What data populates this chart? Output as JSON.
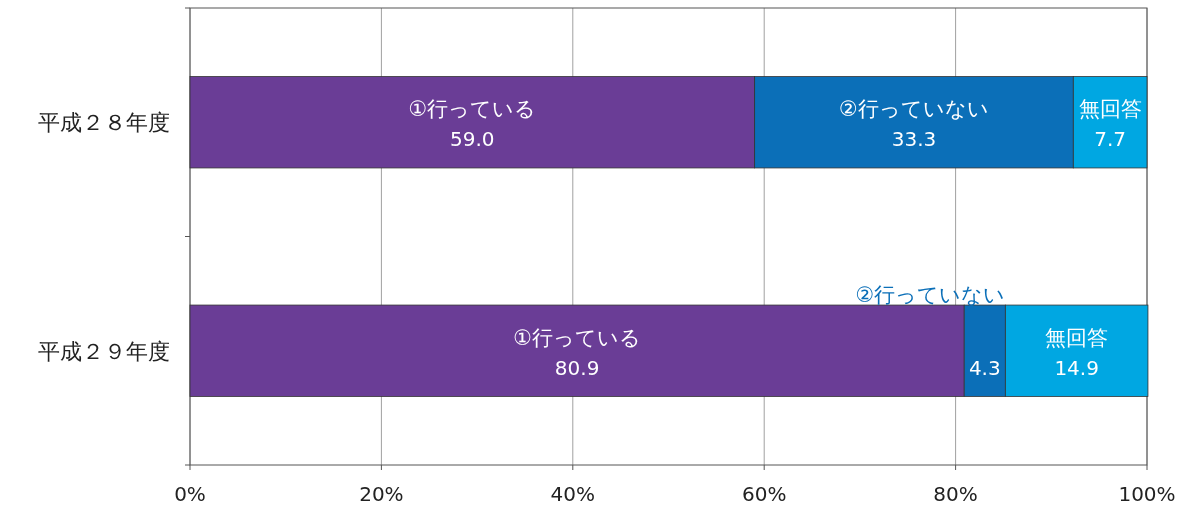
{
  "chart_data": {
    "type": "bar",
    "orientation": "horizontal",
    "stacked": true,
    "categories": [
      "平成２８年度",
      "平成２９年度"
    ],
    "series": [
      {
        "name": "①行っている",
        "color": "#6a3d96",
        "values": [
          59.0,
          80.9
        ],
        "value_labels": [
          "59.0",
          "80.9"
        ]
      },
      {
        "name": "②行っていない",
        "color": "#0b6fb8",
        "values": [
          33.3,
          4.3
        ],
        "value_labels": [
          "33.3",
          "4.3"
        ]
      },
      {
        "name": "無回答",
        "color": "#00a7e2",
        "values": [
          7.7,
          14.9
        ],
        "value_labels": [
          "7.7",
          "14.9"
        ]
      }
    ],
    "xlim": [
      0,
      100
    ],
    "xticks": [
      {
        "value": 0,
        "label": "0%"
      },
      {
        "value": 20,
        "label": "20%"
      },
      {
        "value": 40,
        "label": "40%"
      },
      {
        "value": 60,
        "label": "60%"
      },
      {
        "value": 80,
        "label": "80%"
      },
      {
        "value": 100,
        "label": "100%"
      }
    ],
    "grid": "x"
  }
}
